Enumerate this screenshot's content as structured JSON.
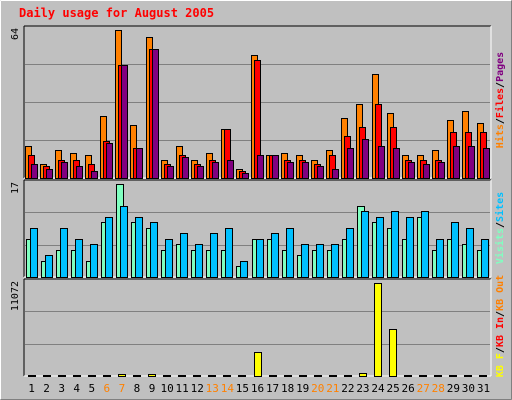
{
  "title": "Daily usage for August 2005",
  "colors": {
    "background": "#c0c0c0",
    "title": "#ff0000",
    "frame_light": "#ffffff",
    "frame_dark": "#808080",
    "grid": "#808080",
    "hits": "#ff8000",
    "files": "#ff0000",
    "pages": "#800080",
    "sites": "#00c0ff",
    "visits": "#80ffc0",
    "kb_f": "#ffff00",
    "kb_in": "#ff0000",
    "kb_out": "#ff8000",
    "weekday_label": "#000000",
    "weekend_label": "#ff8000"
  },
  "chart_data": [
    {
      "type": "bar",
      "panel": "hits-files-pages",
      "ylim": [
        0,
        64
      ],
      "ytick_label": "64",
      "legend": [
        {
          "text": "Hits",
          "color": "#ff8000"
        },
        {
          "text": "/",
          "color": "#000000"
        },
        {
          "text": "Files",
          "color": "#ff0000"
        },
        {
          "text": "/",
          "color": "#000000"
        },
        {
          "text": "Pages",
          "color": "#800080"
        }
      ],
      "categories": [
        "1",
        "2",
        "3",
        "4",
        "5",
        "6",
        "7",
        "8",
        "9",
        "10",
        "11",
        "12",
        "13",
        "14",
        "15",
        "16",
        "17",
        "18",
        "19",
        "20",
        "21",
        "22",
        "23",
        "24",
        "25",
        "26",
        "27",
        "28",
        "29",
        "30",
        "31"
      ],
      "series": [
        {
          "name": "Hits",
          "color": "#ff8000",
          "values": [
            14,
            6,
            12,
            11,
            10,
            27,
            64,
            23,
            61,
            8,
            14,
            8,
            11,
            21,
            4,
            53,
            10,
            11,
            10,
            8,
            12,
            26,
            32,
            45,
            28,
            10,
            10,
            12,
            25,
            29,
            24
          ]
        },
        {
          "name": "Files",
          "color": "#ff0000",
          "values": [
            10,
            5,
            8,
            8,
            6,
            16,
            49,
            13,
            56,
            6,
            10,
            6,
            8,
            21,
            3,
            51,
            10,
            8,
            8,
            6,
            10,
            18,
            22,
            32,
            22,
            8,
            8,
            8,
            20,
            20,
            20
          ]
        },
        {
          "name": "Pages",
          "color": "#800080",
          "values": [
            6,
            4,
            7,
            5,
            3,
            15,
            49,
            13,
            56,
            5,
            9,
            5,
            7,
            8,
            2,
            10,
            10,
            7,
            7,
            5,
            4,
            13,
            17,
            14,
            13,
            7,
            6,
            7,
            14,
            14,
            13
          ]
        }
      ]
    },
    {
      "type": "bar",
      "panel": "visits-sites",
      "ylim": [
        0,
        17
      ],
      "ytick_label": "17",
      "legend": [
        {
          "text": "Visits",
          "color": "#80ffc0"
        },
        {
          "text": "/",
          "color": "#000000"
        },
        {
          "text": "Sites",
          "color": "#00c0ff"
        }
      ],
      "categories": [
        "1",
        "2",
        "3",
        "4",
        "5",
        "6",
        "7",
        "8",
        "9",
        "10",
        "11",
        "12",
        "13",
        "14",
        "15",
        "16",
        "17",
        "18",
        "19",
        "20",
        "21",
        "22",
        "23",
        "24",
        "25",
        "26",
        "27",
        "28",
        "29",
        "30",
        "31"
      ],
      "series": [
        {
          "name": "Visits",
          "color": "#80ffc0",
          "values": [
            7,
            3,
            5,
            5,
            3,
            10,
            17,
            10,
            9,
            5,
            6,
            5,
            5,
            5,
            2,
            7,
            7,
            5,
            4,
            5,
            5,
            7,
            13,
            10,
            9,
            7,
            11,
            5,
            7,
            6,
            5
          ]
        },
        {
          "name": "Sites",
          "color": "#00c0ff",
          "values": [
            9,
            4,
            9,
            7,
            6,
            11,
            13,
            11,
            10,
            7,
            8,
            6,
            8,
            9,
            3,
            7,
            8,
            9,
            6,
            6,
            6,
            9,
            12,
            11,
            12,
            11,
            12,
            7,
            10,
            9,
            7
          ]
        }
      ]
    },
    {
      "type": "bar",
      "panel": "kbytes",
      "ylim": [
        0,
        11072
      ],
      "ytick_label": "11072",
      "legend": [
        {
          "text": "KB F",
          "color": "#ffff00"
        },
        {
          "text": "/",
          "color": "#000000"
        },
        {
          "text": "KB In",
          "color": "#ff0000"
        },
        {
          "text": "/",
          "color": "#000000"
        },
        {
          "text": "KB Out",
          "color": "#ff8000"
        }
      ],
      "categories": [
        "1",
        "2",
        "3",
        "4",
        "5",
        "6",
        "7",
        "8",
        "9",
        "10",
        "11",
        "12",
        "13",
        "14",
        "15",
        "16",
        "17",
        "18",
        "19",
        "20",
        "21",
        "22",
        "23",
        "24",
        "25",
        "26",
        "27",
        "28",
        "29",
        "30",
        "31"
      ],
      "series": [
        {
          "name": "KB F",
          "color": "#ffff00",
          "values": [
            60,
            60,
            60,
            60,
            150,
            60,
            250,
            60,
            250,
            60,
            60,
            60,
            60,
            60,
            60,
            2900,
            60,
            60,
            60,
            60,
            60,
            60,
            350,
            11072,
            5600,
            60,
            60,
            60,
            60,
            60,
            60
          ]
        }
      ]
    }
  ],
  "x_labels": [
    {
      "text": "1",
      "weekend": false
    },
    {
      "text": "2",
      "weekend": false
    },
    {
      "text": "3",
      "weekend": false
    },
    {
      "text": "4",
      "weekend": false
    },
    {
      "text": "5",
      "weekend": false
    },
    {
      "text": "6",
      "weekend": true
    },
    {
      "text": "7",
      "weekend": true
    },
    {
      "text": "8",
      "weekend": false
    },
    {
      "text": "9",
      "weekend": false
    },
    {
      "text": "10",
      "weekend": false
    },
    {
      "text": "11",
      "weekend": false
    },
    {
      "text": "12",
      "weekend": false
    },
    {
      "text": "13",
      "weekend": true
    },
    {
      "text": "14",
      "weekend": true
    },
    {
      "text": "15",
      "weekend": false
    },
    {
      "text": "16",
      "weekend": false
    },
    {
      "text": "17",
      "weekend": false
    },
    {
      "text": "18",
      "weekend": false
    },
    {
      "text": "19",
      "weekend": false
    },
    {
      "text": "20",
      "weekend": true
    },
    {
      "text": "21",
      "weekend": true
    },
    {
      "text": "22",
      "weekend": false
    },
    {
      "text": "23",
      "weekend": false
    },
    {
      "text": "24",
      "weekend": false
    },
    {
      "text": "25",
      "weekend": false
    },
    {
      "text": "26",
      "weekend": false
    },
    {
      "text": "27",
      "weekend": true
    },
    {
      "text": "28",
      "weekend": true
    },
    {
      "text": "29",
      "weekend": false
    },
    {
      "text": "30",
      "weekend": false
    },
    {
      "text": "31",
      "weekend": false
    }
  ]
}
